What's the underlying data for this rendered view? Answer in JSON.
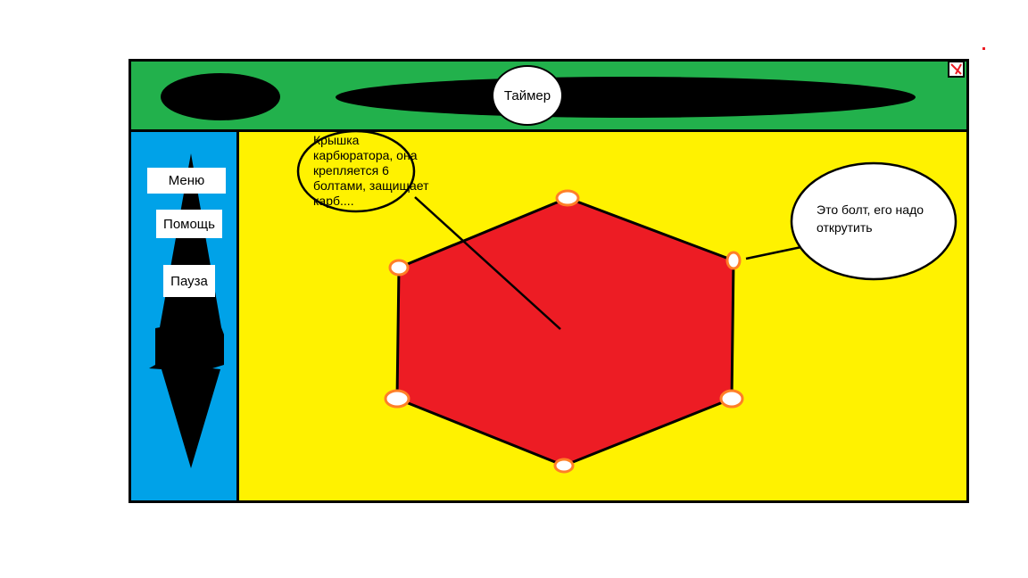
{
  "header": {
    "timer_label": "Таймер"
  },
  "sidebar": {
    "items": [
      {
        "label": "Меню"
      },
      {
        "label": "Помощь"
      },
      {
        "label": "Пауза"
      }
    ]
  },
  "game": {
    "carburetor_hint": "Крышка\nкарбюратора, она\nкрепляется 6\nболтами, защищает\nкарб....",
    "bolt_hint": "Это болт, его надо открутить",
    "bolt_count": 6
  },
  "colors": {
    "header_bg": "#22b14c",
    "sidebar_bg": "#00a2e8",
    "game_bg": "#fff200",
    "cover_fill": "#ed1c24",
    "bolt_outline": "#ff7f27"
  },
  "icons": {
    "close": "close-icon",
    "arrow": "double-arrow-icon"
  }
}
